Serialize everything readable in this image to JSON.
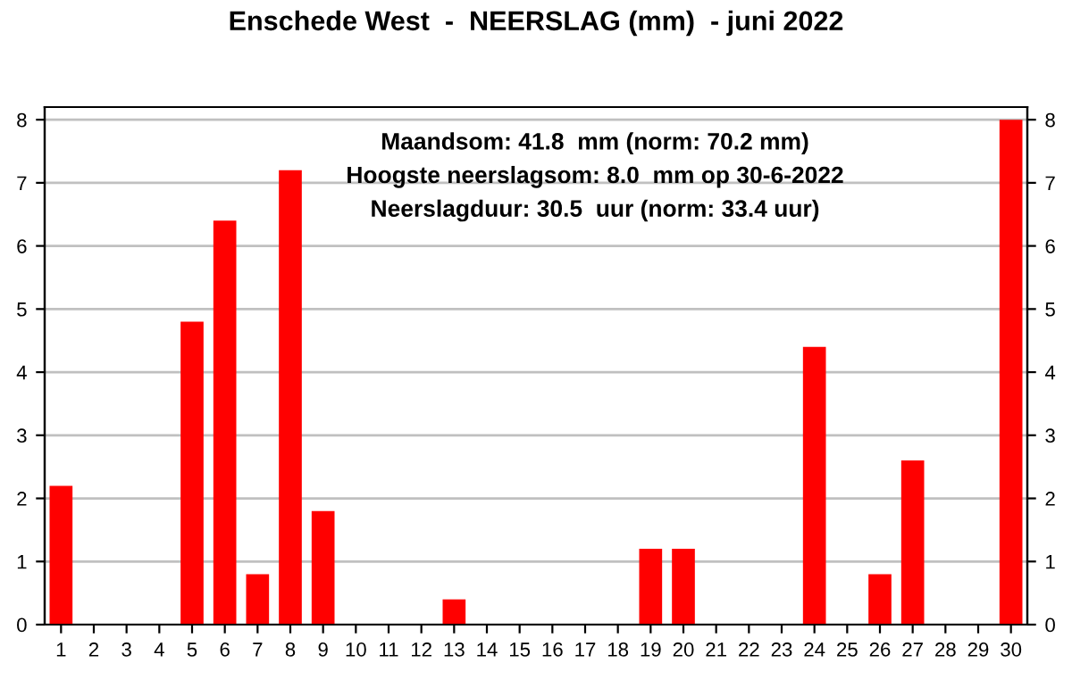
{
  "chart_data": {
    "type": "bar",
    "title": "Enschede West  -  NEERSLAG (mm)  - juni 2022",
    "categories": [
      "1",
      "2",
      "3",
      "4",
      "5",
      "6",
      "7",
      "8",
      "9",
      "10",
      "11",
      "12",
      "13",
      "14",
      "15",
      "16",
      "17",
      "18",
      "19",
      "20",
      "21",
      "22",
      "23",
      "24",
      "25",
      "26",
      "27",
      "28",
      "29",
      "30"
    ],
    "values": [
      2.2,
      0,
      0,
      0,
      4.8,
      6.4,
      0.8,
      7.2,
      1.8,
      0,
      0,
      0,
      0.4,
      0,
      0,
      0,
      0,
      0,
      1.2,
      1.2,
      0,
      0,
      0,
      4.4,
      0,
      0.8,
      2.6,
      0,
      0,
      8.0
    ],
    "color": "#ff0000",
    "ylim": [
      0,
      8.2
    ],
    "yticks": [
      0,
      1,
      2,
      3,
      4,
      5,
      6,
      7,
      8
    ],
    "y2lim": [
      0,
      8.2
    ],
    "y2ticks": [
      0,
      1,
      2,
      3,
      4,
      5,
      6,
      7,
      8
    ],
    "grid": "y",
    "annotations": [
      "Maandsom: 41.8  mm (norm: 70.2 mm)",
      "Hoogste neerslagsom: 8.0  mm op 30-6-2022",
      "Neerslagduur: 30.5  uur (norm: 33.4 uur)"
    ]
  }
}
